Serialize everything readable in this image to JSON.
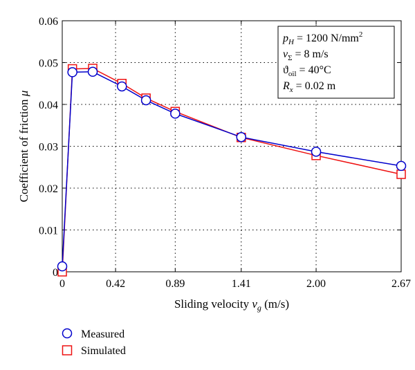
{
  "chart_data": {
    "type": "line",
    "xlabel": "Sliding velocity v_g (m/s)",
    "xlabel_parts": {
      "main": "Sliding velocity ",
      "var": "v",
      "sub": "g",
      "unit": " (m/s)"
    },
    "ylabel": "Coefficient of friction μ",
    "ylabel_parts": {
      "main": "Coefficient of friction ",
      "var": "μ"
    },
    "xlim": [
      0,
      2.67
    ],
    "ylim": [
      0,
      0.06
    ],
    "xtick_values": [
      0,
      0.42,
      0.89,
      1.41,
      2.0,
      2.67
    ],
    "xtick_labels": [
      "0",
      "0.42",
      "0.89",
      "1.41",
      "2.00",
      "2.67"
    ],
    "ytick_values": [
      0,
      0.01,
      0.02,
      0.03,
      0.04,
      0.05,
      0.06
    ],
    "ytick_labels": [
      "0",
      "0.01",
      "0.02",
      "0.03",
      "0.04",
      "0.05",
      "0.06"
    ],
    "grid": true,
    "legend_position": "below-left",
    "series": [
      {
        "name": "Measured",
        "color": "#0000cc",
        "marker": "circle",
        "x": [
          0,
          0.08,
          0.24,
          0.47,
          0.66,
          0.89,
          1.41,
          2.0,
          2.67
        ],
        "y": [
          0.0013,
          0.0477,
          0.0478,
          0.0443,
          0.041,
          0.0378,
          0.0322,
          0.0287,
          0.0253
        ]
      },
      {
        "name": "Simulated",
        "color": "#ee1111",
        "marker": "square",
        "x": [
          0,
          0.08,
          0.24,
          0.47,
          0.66,
          0.89,
          1.41,
          2.0,
          2.67
        ],
        "y": [
          0.0,
          0.0485,
          0.0486,
          0.045,
          0.0415,
          0.0383,
          0.0321,
          0.0278,
          0.0233
        ]
      }
    ],
    "annotation": {
      "line1": {
        "var": "p",
        "sub": "H",
        "text": " = 1200 N/mm",
        "sup": "2"
      },
      "line2": {
        "var": "v",
        "sub": "Σ",
        "text": " = 8 m/s"
      },
      "line3": {
        "var": "ϑ",
        "sub": "oil",
        "text": " = 40°C"
      },
      "line4": {
        "var": "R",
        "sub": "x",
        "text": " = 0.02 m"
      }
    }
  }
}
